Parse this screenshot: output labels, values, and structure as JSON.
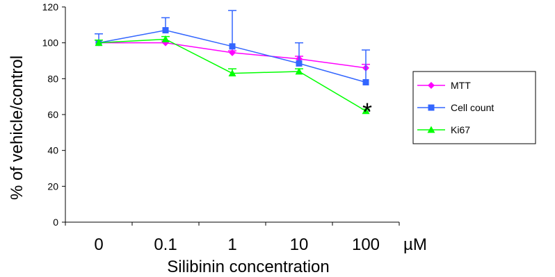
{
  "chart_data": {
    "type": "line",
    "categories": [
      "0",
      "0.1",
      "1",
      "10",
      "100"
    ],
    "x_unit": "µM",
    "xlabel": "Silibinin concentration",
    "ylabel": "% of vehicle/control",
    "ylim": [
      0,
      120
    ],
    "yticks": [
      "0",
      "20",
      "40",
      "60",
      "80",
      "100",
      "120"
    ],
    "grid": false,
    "legend_position": "right",
    "series": [
      {
        "name": "MTT",
        "color": "#ff00ff",
        "marker": "diamond",
        "values": [
          100,
          100,
          94.5,
          91,
          86
        ],
        "err_plus": [
          1.5,
          1,
          1,
          1.5,
          2
        ]
      },
      {
        "name": "Cell count",
        "color": "#3366ff",
        "marker": "square",
        "values": [
          100,
          107,
          98,
          88.5,
          78
        ],
        "err_plus": [
          5,
          7,
          20,
          11.5,
          18
        ]
      },
      {
        "name": "Ki67",
        "color": "#00ff00",
        "marker": "triangle",
        "values": [
          100,
          102,
          83,
          84,
          62
        ],
        "err_plus": [
          1.5,
          1.5,
          2.5,
          1.5,
          1
        ]
      }
    ],
    "annotation": {
      "text": "*",
      "category": "100",
      "y": 66
    }
  }
}
